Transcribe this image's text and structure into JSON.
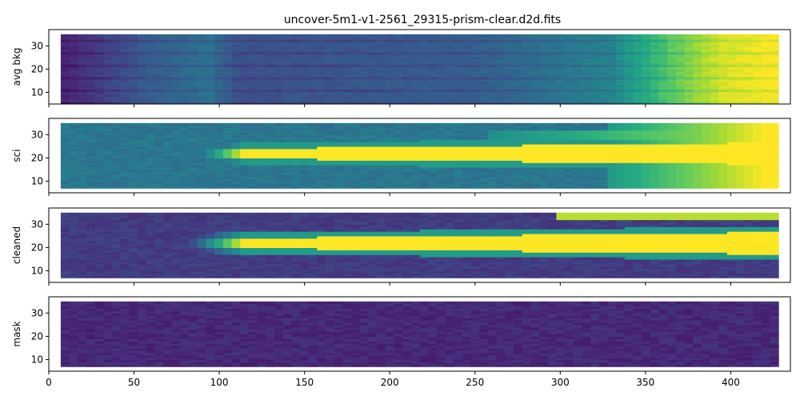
{
  "title": "uncover-5m1-v1-2561_29315-prism-clear.d2d.fits",
  "chart_data": {
    "type": "heatmap",
    "title": "uncover-5m1-v1-2561_29315-prism-clear.d2d.fits",
    "colormap": "viridis",
    "xlim": [
      0,
      435
    ],
    "ylim": [
      5,
      37
    ],
    "xticks": [
      0,
      50,
      100,
      150,
      200,
      250,
      300,
      350,
      400
    ],
    "yticks": [
      10,
      20,
      30
    ],
    "sharex": true,
    "panels": [
      {
        "ylabel": "avg bkg",
        "extent": {
          "x": [
            7,
            428
          ],
          "y": [
            5,
            35
          ]
        },
        "trace": {
          "x": [
            7,
            428
          ],
          "y": [
            7,
            35
          ]
        },
        "background_level": 0.22,
        "gradient": [
          {
            "x": 7,
            "level": 0.1
          },
          {
            "x": 60,
            "level": 0.3
          },
          {
            "x": 95,
            "level": 0.38
          },
          {
            "x": 110,
            "level": 0.25
          },
          {
            "x": 250,
            "level": 0.3
          },
          {
            "x": 330,
            "level": 0.45
          },
          {
            "x": 365,
            "level": 0.75
          },
          {
            "x": 395,
            "level": 0.95
          },
          {
            "x": 428,
            "level": 1.0
          }
        ]
      },
      {
        "ylabel": "sci",
        "extent": {
          "x": [
            7,
            428
          ],
          "y": [
            7,
            35
          ]
        },
        "background_level": 0.4,
        "trace_center": 22,
        "trace_start_x": 75,
        "trace_level": 1.0
      },
      {
        "ylabel": "cleaned",
        "extent": {
          "x": [
            7,
            428
          ],
          "y": [
            7,
            35
          ]
        },
        "background_level": 0.18,
        "trace_center": 22,
        "trace_start_x": 75,
        "trace_level": 1.0
      },
      {
        "ylabel": "mask",
        "extent": {
          "x": [
            7,
            428
          ],
          "y": [
            7,
            35
          ]
        },
        "background_level": 0.12
      }
    ]
  }
}
